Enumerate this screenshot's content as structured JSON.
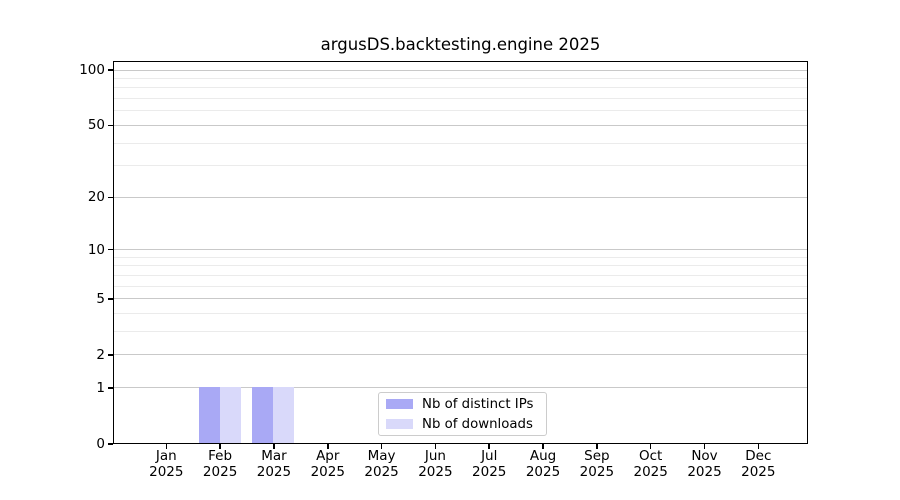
{
  "chart_data": {
    "type": "bar",
    "title": "argusDS.backtesting.engine 2025",
    "year_label": "2025",
    "categories": [
      "Jan",
      "Feb",
      "Mar",
      "Apr",
      "May",
      "Jun",
      "Jul",
      "Aug",
      "Sep",
      "Oct",
      "Nov",
      "Dec"
    ],
    "series": [
      {
        "name": "Nb of distinct IPs",
        "color": "#a9a9f5",
        "values": [
          0,
          1,
          1,
          0,
          0,
          0,
          0,
          0,
          0,
          0,
          0,
          0
        ]
      },
      {
        "name": "Nb of downloads",
        "color": "#d9d9fa",
        "values": [
          0,
          1,
          1,
          0,
          0,
          0,
          0,
          0,
          0,
          0,
          0,
          0
        ]
      }
    ],
    "yscale": "log1p",
    "ylim": [
      0,
      110
    ],
    "yticks": [
      0,
      1,
      2,
      5,
      10,
      20,
      50,
      100
    ],
    "yticks_minor": [
      3,
      4,
      6,
      7,
      8,
      9,
      30,
      40,
      60,
      70,
      80,
      90
    ],
    "grid": true,
    "legend_position": "lower-center",
    "axis_color": "#000000",
    "grid_major_color": "#c9c9c9",
    "grid_minor_color": "#ebebeb"
  }
}
